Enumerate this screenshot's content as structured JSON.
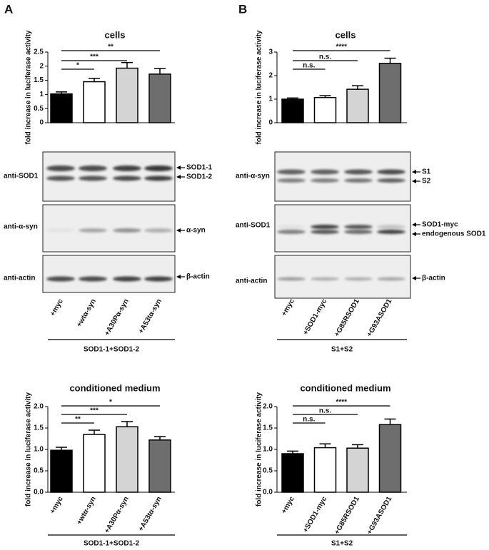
{
  "panels": [
    "A",
    "B"
  ],
  "blots": [
    {
      "rows": [
        {
          "antibody": "anti-SOD1",
          "bands": [
            "SOD1-1",
            "SOD1-2"
          ]
        },
        {
          "antibody": "anti-α-syn",
          "bands": [
            "α-syn"
          ]
        },
        {
          "antibody": "anti-actin",
          "bands": [
            "β-actin"
          ]
        }
      ]
    },
    {
      "rows": [
        {
          "antibody": "anti-α-syn",
          "bands": [
            "S1",
            "S2"
          ]
        },
        {
          "antibody": "anti-SOD1",
          "bands": [
            "SOD1-myc",
            "endogenous SOD1"
          ]
        },
        {
          "antibody": "anti-actin",
          "bands": [
            "β-actin"
          ]
        }
      ]
    }
  ],
  "chart_data": [
    {
      "type": "bar",
      "title": "cells",
      "ylabel": "fold increase in luciferase activity",
      "xlabel": "SOD1-1+SOD1-2",
      "categories": [
        "+myc",
        "+wtα-syn",
        "+A30Pα-syn",
        "+A53tα-syn"
      ],
      "values": [
        1.02,
        1.45,
        1.93,
        1.72
      ],
      "errors": [
        0.07,
        0.12,
        0.2,
        0.2
      ],
      "colors": [
        "#000000",
        "#ffffff",
        "#d4d4d4",
        "#6e6e6e"
      ],
      "ylim": [
        0,
        2.5
      ],
      "yticks": [
        0,
        0.5,
        1,
        1.5,
        2,
        2.5
      ],
      "annotations": [
        {
          "label": "*",
          "between": [
            0,
            1
          ]
        },
        {
          "label": "***",
          "between": [
            0,
            2
          ]
        },
        {
          "label": "**",
          "between": [
            0,
            3
          ]
        }
      ]
    },
    {
      "type": "bar",
      "title": "conditioned medium",
      "ylabel": "fold increase in luciferase activity",
      "xlabel": "SOD1-1+SOD1-2",
      "categories": [
        "+myc",
        "+wtα-syn",
        "+A30Pα-syn",
        "+A53tα-syn"
      ],
      "values": [
        0.98,
        1.35,
        1.53,
        1.22
      ],
      "errors": [
        0.07,
        0.1,
        0.12,
        0.08
      ],
      "colors": [
        "#000000",
        "#ffffff",
        "#d4d4d4",
        "#6e6e6e"
      ],
      "ylim": [
        0,
        2
      ],
      "yticks": [
        {
          "value": 0,
          "label": "0.0"
        },
        {
          "value": 0.5,
          "label": "0.5"
        },
        {
          "value": 1,
          "label": "1.0"
        },
        {
          "value": 1.5,
          "label": "1.5"
        },
        {
          "value": 2,
          "label": "2.0"
        }
      ],
      "annotations": [
        {
          "label": "**",
          "between": [
            0,
            1
          ]
        },
        {
          "label": "***",
          "between": [
            0,
            2
          ]
        },
        {
          "label": "*",
          "between": [
            0,
            3
          ]
        }
      ]
    },
    {
      "type": "bar",
      "title": "cells",
      "ylabel": "fold increase in luciferase activity",
      "xlabel": "S1+S2",
      "categories": [
        "+myc",
        "+SOD1-myc",
        "+G85RSOD1",
        "+G93ASOD1"
      ],
      "values": [
        1.0,
        1.07,
        1.42,
        2.52
      ],
      "errors": [
        0.05,
        0.08,
        0.15,
        0.22
      ],
      "colors": [
        "#000000",
        "#ffffff",
        "#d4d4d4",
        "#6e6e6e"
      ],
      "ylim": [
        0,
        3
      ],
      "yticks": [
        0,
        1,
        2,
        3
      ],
      "annotations": [
        {
          "label": "n.s.",
          "between": [
            0,
            1
          ]
        },
        {
          "label": "n.s.",
          "between": [
            0,
            2
          ]
        },
        {
          "label": "****",
          "between": [
            0,
            3
          ]
        }
      ]
    },
    {
      "type": "bar",
      "title": "conditioned medium",
      "ylabel": "fold increase in luciferase activity",
      "xlabel": "S1+S2",
      "categories": [
        "+myc",
        "+SOD1-myc",
        "+G85RSOD1",
        "+G93ASOD1"
      ],
      "values": [
        0.9,
        1.04,
        1.03,
        1.58
      ],
      "errors": [
        0.06,
        0.09,
        0.08,
        0.13
      ],
      "colors": [
        "#000000",
        "#ffffff",
        "#d4d4d4",
        "#6e6e6e"
      ],
      "ylim": [
        0,
        2
      ],
      "yticks": [
        {
          "value": 0,
          "label": "0.0"
        },
        {
          "value": 0.5,
          "label": "0.5"
        },
        {
          "value": 1,
          "label": "1.0"
        },
        {
          "value": 1.5,
          "label": "1.5"
        },
        {
          "value": 2,
          "label": "2.0"
        }
      ],
      "annotations": [
        {
          "label": "n.s.",
          "between": [
            0,
            1
          ]
        },
        {
          "label": "n.s.",
          "between": [
            0,
            2
          ]
        },
        {
          "label": "****",
          "between": [
            0,
            3
          ]
        }
      ]
    }
  ]
}
